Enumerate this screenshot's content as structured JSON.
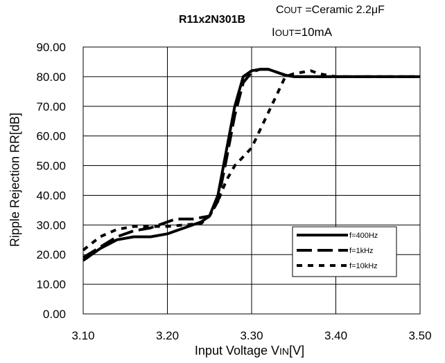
{
  "chart_data": {
    "type": "line",
    "title": "R11x2N301B",
    "annotations": {
      "cout": {
        "prefix": "C",
        "sub": "OUT",
        "text": " =Ceramic 2.2μF"
      },
      "iout": {
        "prefix": "I",
        "sub": "OUT",
        "text": "=10mA"
      }
    },
    "xlabel": {
      "text": "Input Voltage V",
      "sub": "IN",
      "suffix": "[V]"
    },
    "ylabel": "Ripple Rejection RR[dB]",
    "xlim": [
      3.1,
      3.5
    ],
    "ylim": [
      0,
      90
    ],
    "x_ticks": [
      "3.10",
      "3.20",
      "3.30",
      "3.40",
      "3.50"
    ],
    "y_ticks": [
      "0.00",
      "10.00",
      "20.00",
      "30.00",
      "40.00",
      "50.00",
      "60.00",
      "70.00",
      "80.00",
      "90.00"
    ],
    "grid": true,
    "legend_position": "bottom-right",
    "series": [
      {
        "name": "f=400Hz",
        "style": "solid",
        "x": [
          3.1,
          3.12,
          3.14,
          3.16,
          3.18,
          3.2,
          3.22,
          3.24,
          3.25,
          3.26,
          3.27,
          3.28,
          3.29,
          3.3,
          3.31,
          3.32,
          3.33,
          3.34,
          3.35,
          3.4,
          3.45,
          3.5
        ],
        "y": [
          18,
          22,
          25,
          26,
          26,
          27,
          29,
          31,
          33,
          40,
          55,
          70,
          80,
          82,
          82.5,
          82.5,
          81.5,
          80.5,
          80,
          80,
          80,
          80
        ]
      },
      {
        "name": "f=1kHz",
        "style": "dashed",
        "x": [
          3.1,
          3.12,
          3.14,
          3.16,
          3.18,
          3.2,
          3.21,
          3.22,
          3.23,
          3.24,
          3.25,
          3.26,
          3.27,
          3.28,
          3.29,
          3.3,
          3.31,
          3.32,
          3.33,
          3.34,
          3.35,
          3.4,
          3.45,
          3.5
        ],
        "y": [
          19,
          22.5,
          26,
          28,
          29,
          31,
          32,
          32,
          32,
          32.5,
          33,
          38,
          52,
          67,
          78,
          81.5,
          82.5,
          82.5,
          81.5,
          80.5,
          80,
          80,
          80,
          80
        ]
      },
      {
        "name": "f=10kHz",
        "style": "dotted",
        "x": [
          3.1,
          3.12,
          3.14,
          3.16,
          3.18,
          3.2,
          3.22,
          3.24,
          3.25,
          3.26,
          3.27,
          3.28,
          3.29,
          3.3,
          3.31,
          3.32,
          3.33,
          3.34,
          3.35,
          3.36,
          3.37,
          3.38,
          3.4,
          3.45,
          3.5
        ],
        "y": [
          21.5,
          26,
          28.5,
          29.5,
          29.5,
          29.5,
          30,
          30.5,
          33,
          38,
          45,
          50,
          53,
          56,
          62,
          68,
          74,
          80,
          81,
          81.5,
          82,
          81,
          80,
          80,
          80
        ]
      }
    ]
  }
}
